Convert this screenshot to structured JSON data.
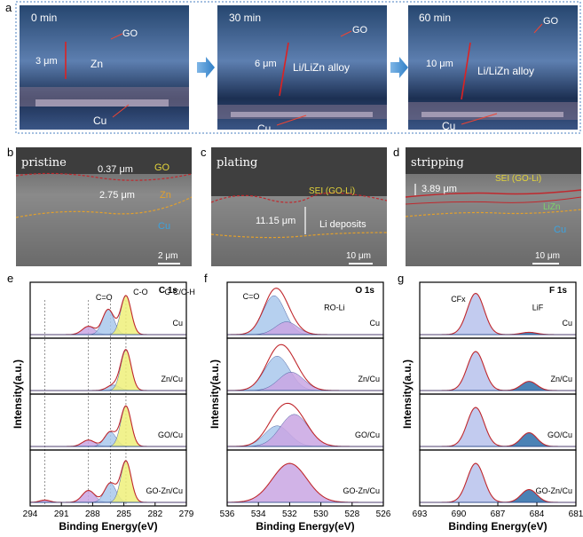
{
  "panel_a": {
    "label": "a",
    "frames": [
      {
        "time": "0 min",
        "thickness": "3 μm",
        "layer": "Zn",
        "go": "GO",
        "cu": "Cu"
      },
      {
        "time": "30 min",
        "thickness": "6 μm",
        "layer": "Li/LiZn alloy",
        "go": "GO",
        "cu": "Cu"
      },
      {
        "time": "60 min",
        "thickness": "10 μm",
        "layer": "Li/LiZn alloy",
        "go": "GO",
        "cu": "Cu"
      }
    ]
  },
  "panel_b": {
    "label": "b",
    "title": "pristine",
    "t1": "0.37 μm",
    "t2": "2.75 μm",
    "go": "GO",
    "zn": "Zn",
    "cu": "Cu",
    "scale": "2 μm"
  },
  "panel_c": {
    "label": "c",
    "title": "plating",
    "sei": "SEI (GO-Li)",
    "thickness": "11.15 μm",
    "deposits": "Li deposits",
    "scale": "10 μm"
  },
  "panel_d": {
    "label": "d",
    "title": "stripping",
    "sei": "SEI (GO-Li)",
    "thickness": "3.89 μm",
    "lizn": "LiZn",
    "cu": "Cu",
    "scale": "10 μm"
  },
  "colors": {
    "frame_border": "#4a7fc1",
    "arrow_blue": "#2f7fc7",
    "red_line": "#c0282d",
    "orange_line": "#e3a02b",
    "fit_red": "#c0282d",
    "fill_blue": "#a9c8ec",
    "fill_purple": "#c9a6e3",
    "fill_yellow": "#eef07a",
    "fill_navy": "#2b6ca8"
  },
  "chart_data": [
    {
      "type": "area",
      "panel_label": "e",
      "title": "C 1s",
      "xlabel": "Binding Energy(eV)",
      "ylabel": "Intensity(a.u.)",
      "xlim": [
        294,
        279
      ],
      "xticks": [
        294,
        291,
        288,
        285,
        282,
        279
      ],
      "peak_labels": [
        "C=O",
        "C-O",
        "C-C/C-H"
      ],
      "dotted_lines": [
        292.6,
        288.4,
        286.3,
        284.8
      ],
      "series": [
        {
          "name": "Cu",
          "peaks": [
            {
              "center": 288.4,
              "height": 0.18,
              "width": 0.6
            },
            {
              "center": 286.5,
              "height": 0.55,
              "width": 0.55
            },
            {
              "center": 284.8,
              "height": 0.85,
              "width": 0.5
            }
          ]
        },
        {
          "name": "Zn/Cu",
          "peaks": [
            {
              "center": 286.0,
              "height": 0.12,
              "width": 0.6
            },
            {
              "center": 284.8,
              "height": 0.88,
              "width": 0.5
            }
          ]
        },
        {
          "name": "GO/Cu",
          "peaks": [
            {
              "center": 288.4,
              "height": 0.14,
              "width": 0.6
            },
            {
              "center": 286.3,
              "height": 0.32,
              "width": 0.55
            },
            {
              "center": 284.8,
              "height": 0.88,
              "width": 0.5
            }
          ]
        },
        {
          "name": "GO-Zn/Cu",
          "peaks": [
            {
              "center": 292.6,
              "height": 0.05,
              "width": 0.5
            },
            {
              "center": 288.4,
              "height": 0.26,
              "width": 0.6
            },
            {
              "center": 286.3,
              "height": 0.42,
              "width": 0.55
            },
            {
              "center": 284.8,
              "height": 0.9,
              "width": 0.5
            }
          ]
        }
      ]
    },
    {
      "type": "area",
      "panel_label": "f",
      "title": "O 1s",
      "xlabel": "Binding Energy(eV)",
      "ylabel": "Intensity(a.u.)",
      "xlim": [
        536,
        526
      ],
      "xticks": [
        536,
        534,
        532,
        530,
        528,
        526
      ],
      "peak_labels": [
        "C=O",
        "RO-Li"
      ],
      "series": [
        {
          "name": "Cu",
          "peaks": [
            {
              "center": 533.0,
              "height": 0.85,
              "width": 0.7
            },
            {
              "center": 532.2,
              "height": 0.28,
              "width": 0.7
            }
          ]
        },
        {
          "name": "Zn/Cu",
          "peaks": [
            {
              "center": 532.8,
              "height": 0.75,
              "width": 0.8
            },
            {
              "center": 531.9,
              "height": 0.4,
              "width": 0.8
            }
          ]
        },
        {
          "name": "GO/Cu",
          "peaks": [
            {
              "center": 532.8,
              "height": 0.45,
              "width": 0.8
            },
            {
              "center": 531.7,
              "height": 0.7,
              "width": 0.9
            }
          ]
        },
        {
          "name": "GO-Zn/Cu",
          "peaks": [
            {
              "center": 532.0,
              "height": 0.85,
              "width": 1.1
            }
          ]
        }
      ]
    },
    {
      "type": "area",
      "panel_label": "g",
      "title": "F 1s",
      "xlabel": "Binding Energy(eV)",
      "ylabel": "Intensity(a.u.)",
      "xlim": [
        693,
        681
      ],
      "xticks": [
        693,
        690,
        687,
        684,
        681
      ],
      "peak_labels": [
        "CFx",
        "LiF"
      ],
      "series": [
        {
          "name": "Cu",
          "peaks": [
            {
              "center": 688.7,
              "height": 0.9,
              "width": 0.65
            },
            {
              "center": 684.6,
              "height": 0.05,
              "width": 0.6
            }
          ]
        },
        {
          "name": "Zn/Cu",
          "peaks": [
            {
              "center": 688.7,
              "height": 0.85,
              "width": 0.65
            },
            {
              "center": 684.6,
              "height": 0.2,
              "width": 0.6
            }
          ]
        },
        {
          "name": "GO/Cu",
          "peaks": [
            {
              "center": 688.7,
              "height": 0.85,
              "width": 0.65
            },
            {
              "center": 684.6,
              "height": 0.3,
              "width": 0.6
            }
          ]
        },
        {
          "name": "GO-Zn/Cu",
          "peaks": [
            {
              "center": 688.7,
              "height": 0.85,
              "width": 0.65
            },
            {
              "center": 684.6,
              "height": 0.28,
              "width": 0.6
            }
          ]
        }
      ]
    }
  ]
}
